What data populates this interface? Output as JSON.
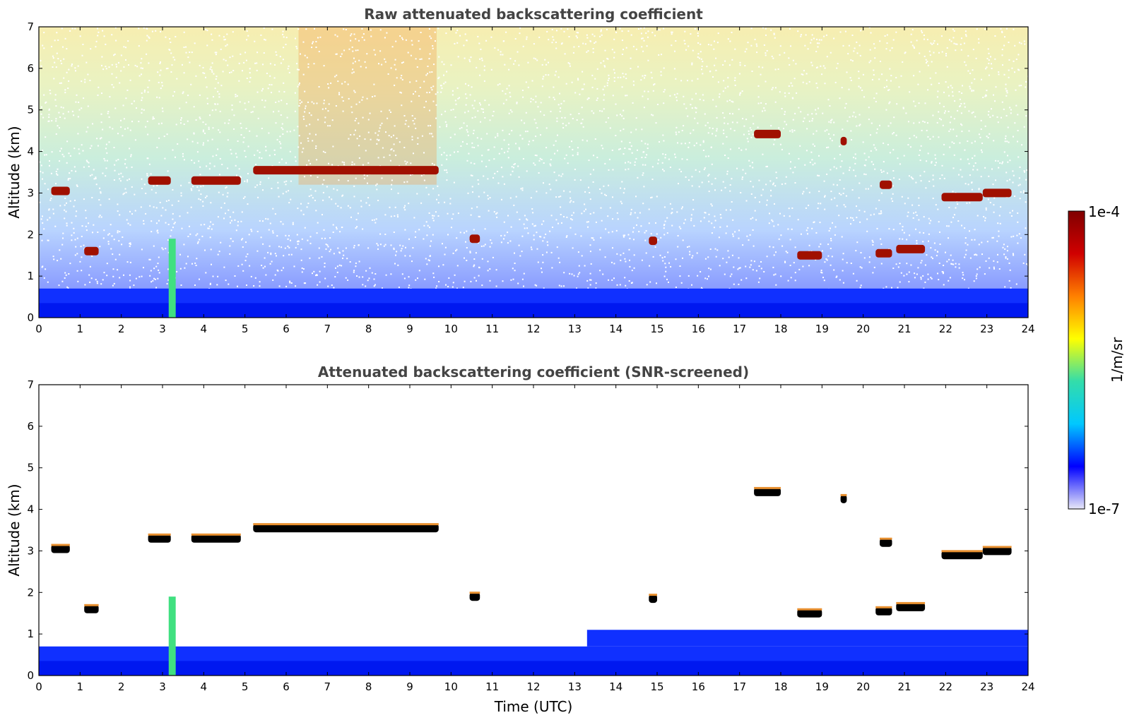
{
  "chart_data": [
    {
      "type": "heatmap",
      "title": "Raw attenuated backscattering coefficient",
      "xlabel": "",
      "ylabel": "Altitude (km)",
      "xlim": [
        0,
        24
      ],
      "ylim": [
        0,
        7
      ],
      "xticks": [
        "0",
        "1",
        "2",
        "3",
        "4",
        "5",
        "6",
        "7",
        "8",
        "9",
        "10",
        "11",
        "12",
        "13",
        "14",
        "15",
        "16",
        "17",
        "18",
        "19",
        "20",
        "21",
        "22",
        "23",
        "24"
      ],
      "yticks": [
        "0",
        "1",
        "2",
        "3",
        "4",
        "5",
        "6",
        "7"
      ],
      "noise_background": true,
      "clouds": [
        {
          "t0": 0.3,
          "t1": 0.75,
          "alt": 3.05
        },
        {
          "t0": 1.1,
          "t1": 1.45,
          "alt": 1.6
        },
        {
          "t0": 2.65,
          "t1": 3.2,
          "alt": 3.3
        },
        {
          "t0": 3.7,
          "t1": 4.9,
          "alt": 3.3
        },
        {
          "t0": 5.2,
          "t1": 9.7,
          "alt": 3.55
        },
        {
          "t0": 10.45,
          "t1": 10.7,
          "alt": 1.9
        },
        {
          "t0": 14.8,
          "t1": 15.0,
          "alt": 1.85
        },
        {
          "t0": 17.35,
          "t1": 18.0,
          "alt": 4.42
        },
        {
          "t0": 18.4,
          "t1": 19.0,
          "alt": 1.5
        },
        {
          "t0": 19.45,
          "t1": 19.6,
          "alt": 4.25
        },
        {
          "t0": 20.4,
          "t1": 20.7,
          "alt": 3.2
        },
        {
          "t0": 20.3,
          "t1": 20.7,
          "alt": 1.55
        },
        {
          "t0": 20.8,
          "t1": 21.5,
          "alt": 1.65
        },
        {
          "t0": 21.9,
          "t1": 22.9,
          "alt": 2.9
        },
        {
          "t0": 22.9,
          "t1": 23.6,
          "alt": 3.0
        }
      ]
    },
    {
      "type": "heatmap",
      "title": "Attenuated backscattering coefficient (SNR-screened)",
      "xlabel": "Time (UTC)",
      "ylabel": "Altitude (km)",
      "xlim": [
        0,
        24
      ],
      "ylim": [
        0,
        7
      ],
      "xticks": [
        "0",
        "1",
        "2",
        "3",
        "4",
        "5",
        "6",
        "7",
        "8",
        "9",
        "10",
        "11",
        "12",
        "13",
        "14",
        "15",
        "16",
        "17",
        "18",
        "19",
        "20",
        "21",
        "22",
        "23",
        "24"
      ],
      "yticks": [
        "0",
        "1",
        "2",
        "3",
        "4",
        "5",
        "6",
        "7"
      ],
      "noise_background": false,
      "clouds": [
        {
          "t0": 0.3,
          "t1": 0.75,
          "alt": 3.05
        },
        {
          "t0": 1.1,
          "t1": 1.45,
          "alt": 1.6
        },
        {
          "t0": 2.65,
          "t1": 3.2,
          "alt": 3.3
        },
        {
          "t0": 3.7,
          "t1": 4.9,
          "alt": 3.3
        },
        {
          "t0": 5.2,
          "t1": 9.7,
          "alt": 3.55
        },
        {
          "t0": 10.45,
          "t1": 10.7,
          "alt": 1.9
        },
        {
          "t0": 14.8,
          "t1": 15.0,
          "alt": 1.85
        },
        {
          "t0": 17.35,
          "t1": 18.0,
          "alt": 4.42
        },
        {
          "t0": 18.4,
          "t1": 19.0,
          "alt": 1.5
        },
        {
          "t0": 19.45,
          "t1": 19.6,
          "alt": 4.25
        },
        {
          "t0": 20.4,
          "t1": 20.7,
          "alt": 3.2
        },
        {
          "t0": 20.3,
          "t1": 20.7,
          "alt": 1.55
        },
        {
          "t0": 20.8,
          "t1": 21.5,
          "alt": 1.65
        },
        {
          "t0": 21.9,
          "t1": 22.9,
          "alt": 2.9
        },
        {
          "t0": 22.9,
          "t1": 23.6,
          "alt": 3.0
        }
      ]
    }
  ],
  "colorbar": {
    "label": "1/m/sr",
    "max_label": "1e-4",
    "min_label": "1e-7",
    "colormap": "jet",
    "colors": [
      "#e8e8f8",
      "#0000ff",
      "#00c8ff",
      "#33ddaa",
      "#ffff00",
      "#ff8000",
      "#d00000",
      "#800000"
    ]
  }
}
